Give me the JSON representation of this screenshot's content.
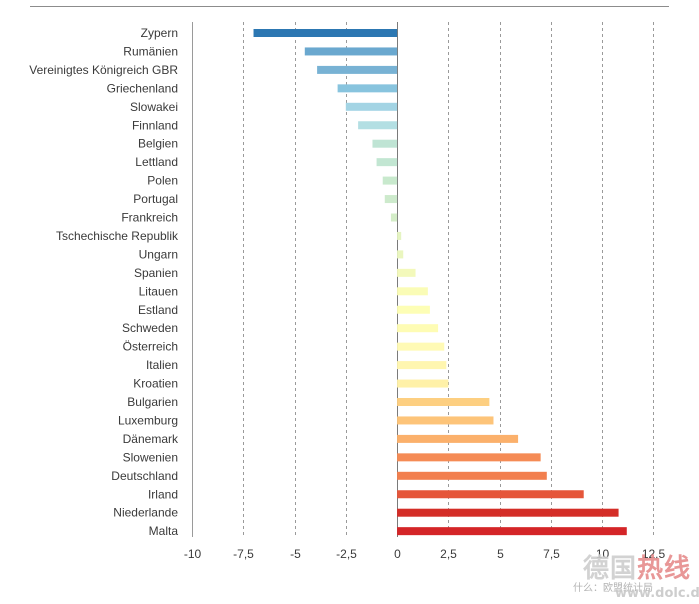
{
  "chart_data": {
    "type": "bar",
    "orientation": "horizontal",
    "categories": [
      "Zypern",
      "Rumänien",
      "Vereinigtes Königreich GBR",
      "Griechenland",
      "Slowakei",
      "Finnland",
      "Belgien",
      "Lettland",
      "Polen",
      "Portugal",
      "Frankreich",
      "Tschechische Republik",
      "Ungarn",
      "Spanien",
      "Litauen",
      "Estland",
      "Schweden",
      "Österreich",
      "Italien",
      "Kroatien",
      "Bulgarien",
      "Luxemburg",
      "Dänemark",
      "Slowenien",
      "Deutschland",
      "Irland",
      "Niederlande",
      "Malta"
    ],
    "values": [
      -7.0,
      -4.5,
      -3.9,
      -2.9,
      -2.5,
      -1.9,
      -1.2,
      -1.0,
      -0.7,
      -0.6,
      -0.3,
      0.2,
      0.3,
      0.9,
      1.5,
      1.6,
      2.0,
      2.3,
      2.4,
      2.5,
      4.5,
      4.7,
      5.9,
      7.0,
      7.3,
      9.1,
      10.8,
      11.2
    ],
    "colors": [
      "#2c77b2",
      "#6aa8cf",
      "#78b2d4",
      "#88c4de",
      "#a3d4e4",
      "#b3dfe3",
      "#bfe4d4",
      "#c2e6d2",
      "#c8e9cd",
      "#cdeacc",
      "#d4edc8",
      "#e5f4c2",
      "#eaf6bf",
      "#f3f9bb",
      "#fafcb6",
      "#fdfeb5",
      "#fefcb4",
      "#fffab5",
      "#fff6b0",
      "#fff1a8",
      "#fdcf81",
      "#fdc479",
      "#fbb06b",
      "#f58b55",
      "#f27f4e",
      "#e5563a",
      "#d42d27",
      "#d42528"
    ],
    "xlim": [
      -10,
      13.6
    ],
    "xticks": [
      -10,
      -7.5,
      -5,
      -2.5,
      0,
      2.5,
      5,
      7.5,
      10,
      12.5
    ],
    "xtick_labels": [
      "-10",
      "-7,5",
      "-5",
      "-2,5",
      "0",
      "2,5",
      "5",
      "7,5",
      "10",
      "12,5"
    ],
    "grid": true
  },
  "watermark": {
    "brand_a": "德国",
    "brand_b": "热线",
    "tagline": "什么：欧盟统计局",
    "url": "www.dolc.de"
  }
}
